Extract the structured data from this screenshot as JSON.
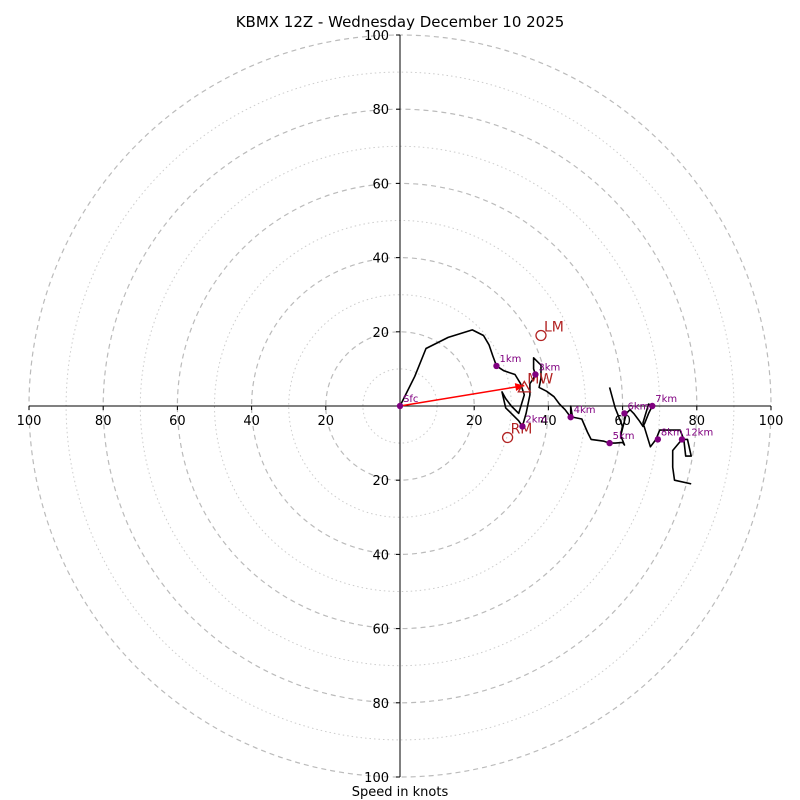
{
  "chart_data": {
    "type": "hodograph",
    "title": "KBMX 12Z - Wednesday December 10 2025",
    "xlabel": "Speed in knots",
    "ylabel": "",
    "xlim": [
      -100,
      100
    ],
    "ylim": [
      -100,
      100
    ],
    "units": "knots",
    "rings": {
      "major": [
        20,
        40,
        60,
        80,
        100
      ],
      "minor": [
        10,
        30,
        50,
        70,
        90
      ],
      "major_style": "dashed",
      "minor_style": "dotted"
    },
    "x_tick_labels": [
      "100",
      "80",
      "60",
      "40",
      "20",
      "20",
      "40",
      "60",
      "80",
      "100"
    ],
    "x_tick_values": [
      -100,
      -80,
      -60,
      -40,
      -20,
      20,
      40,
      60,
      80,
      100
    ],
    "y_tick_labels": [
      "100",
      "80",
      "60",
      "40",
      "20",
      "20",
      "40",
      "60",
      "80",
      "100"
    ],
    "y_tick_values": [
      100,
      80,
      60,
      40,
      20,
      -20,
      -40,
      -60,
      -80,
      -100
    ],
    "hodograph_trace": {
      "color": "#000000",
      "points": [
        [
          0,
          0
        ],
        [
          4,
          8
        ],
        [
          7,
          15.5
        ],
        [
          13,
          18.5
        ],
        [
          19.5,
          20.5
        ],
        [
          22.5,
          19
        ],
        [
          24,
          16.5
        ],
        [
          25,
          13.5
        ],
        [
          26,
          10.8
        ],
        [
          28,
          9.5
        ],
        [
          31,
          8.5
        ],
        [
          32.5,
          6
        ],
        [
          33.5,
          3
        ],
        [
          32,
          -2
        ],
        [
          30,
          0
        ],
        [
          28.5,
          2
        ],
        [
          27.5,
          3.8
        ],
        [
          28.5,
          -0.5
        ],
        [
          30.5,
          -2.5
        ],
        [
          32,
          -4
        ],
        [
          33,
          -5.5
        ],
        [
          34,
          -2
        ],
        [
          35,
          3
        ],
        [
          35,
          6
        ],
        [
          36,
          7.5
        ],
        [
          36.5,
          8.5
        ],
        [
          36,
          10
        ],
        [
          36,
          13
        ],
        [
          38,
          11
        ],
        [
          38,
          7.5
        ],
        [
          37.5,
          5
        ],
        [
          39.5,
          4
        ],
        [
          41.5,
          2.5
        ],
        [
          43,
          0.5
        ],
        [
          44.5,
          -1
        ],
        [
          46,
          -3
        ],
        [
          46,
          0
        ],
        [
          46.5,
          -3
        ],
        [
          49,
          -3.5
        ],
        [
          50.5,
          -7
        ],
        [
          51.5,
          -9
        ],
        [
          55,
          -9.5
        ],
        [
          56.5,
          -10
        ],
        [
          58,
          -10
        ],
        [
          60,
          -9.8
        ],
        [
          60.5,
          -10.5
        ],
        [
          59.5,
          -8
        ],
        [
          60.5,
          -4
        ],
        [
          61,
          -2
        ],
        [
          62,
          -1
        ],
        [
          63,
          -2
        ],
        [
          64.5,
          -4
        ],
        [
          65.5,
          -5.5
        ],
        [
          66,
          -4.5
        ],
        [
          67,
          -2
        ],
        [
          68,
          0
        ],
        [
          67,
          0.5
        ],
        [
          65.5,
          -4.5
        ],
        [
          67.5,
          -11
        ],
        [
          69,
          -9
        ],
        [
          70,
          -6.5
        ],
        [
          75.5,
          -6.5
        ],
        [
          76.5,
          -9
        ],
        [
          77,
          -13.5
        ],
        [
          78.5,
          -13.5
        ],
        [
          77.5,
          -9
        ],
        [
          76,
          -9
        ],
        [
          73.5,
          -12
        ],
        [
          73.5,
          -16.5
        ],
        [
          74,
          -20
        ],
        [
          78.5,
          -21
        ]
      ],
      "extra_segment": [
        [
          56.5,
          5
        ],
        [
          58,
          -0.5
        ],
        [
          60,
          -5.5
        ],
        [
          59.5,
          -7.5
        ]
      ]
    },
    "height_markers": [
      {
        "label": "Sfc",
        "u": 0,
        "v": 0
      },
      {
        "label": "1km",
        "u": 26,
        "v": 10.8
      },
      {
        "label": "2km",
        "u": 33,
        "v": -5.5
      },
      {
        "label": "3km",
        "u": 36.5,
        "v": 8.5
      },
      {
        "label": "4km",
        "u": 46,
        "v": -3
      },
      {
        "label": "5km",
        "u": 56.5,
        "v": -10
      },
      {
        "label": "6km",
        "u": 60.5,
        "v": -2
      },
      {
        "label": "7km",
        "u": 68,
        "v": 0
      },
      {
        "label": "8km",
        "u": 69.5,
        "v": -9
      },
      {
        "label": "12km",
        "u": 76,
        "v": -9
      }
    ],
    "marker_color": "#800080",
    "storm_motion": [
      {
        "label": "LM",
        "u": 38,
        "v": 19,
        "symbol": "circle-open"
      },
      {
        "label": "RM",
        "u": 29,
        "v": -8.5,
        "symbol": "circle-open"
      },
      {
        "label": "MW",
        "u": 33.5,
        "v": 5,
        "symbol": "triangle-open"
      }
    ],
    "storm_motion_color": "#b22222",
    "mean_wind_vector": {
      "from": [
        0,
        0
      ],
      "to": [
        33.5,
        5.5
      ],
      "color": "#ff0000"
    }
  }
}
